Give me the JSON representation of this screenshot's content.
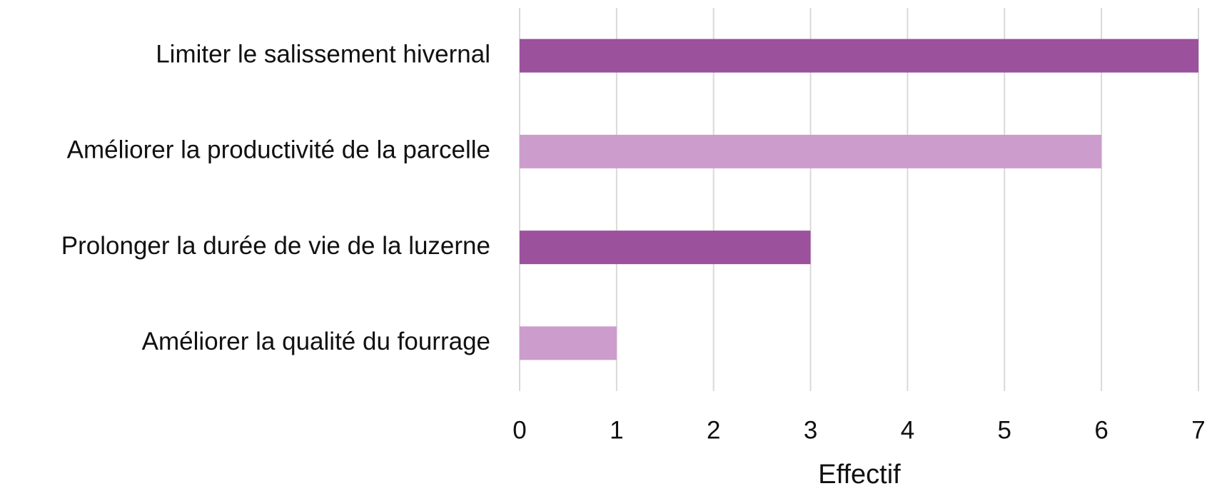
{
  "chart_data": {
    "type": "barh",
    "x_label": "Effectif",
    "categories": [
      "Limiter le salissement hivernal",
      "Améliorer la productivité de la parcelle",
      "Prolonger la durée de vie de la luzerne",
      "Améliorer la qualité du fourrage"
    ],
    "values": [
      7,
      6,
      3,
      1
    ],
    "colors": [
      "#9b519b",
      "#cc9ccc",
      "#9b519b",
      "#cc9ccc"
    ],
    "xlim": [
      0,
      7
    ],
    "xticks": [
      0,
      1,
      2,
      3,
      4,
      5,
      6,
      7
    ],
    "grid": true
  }
}
